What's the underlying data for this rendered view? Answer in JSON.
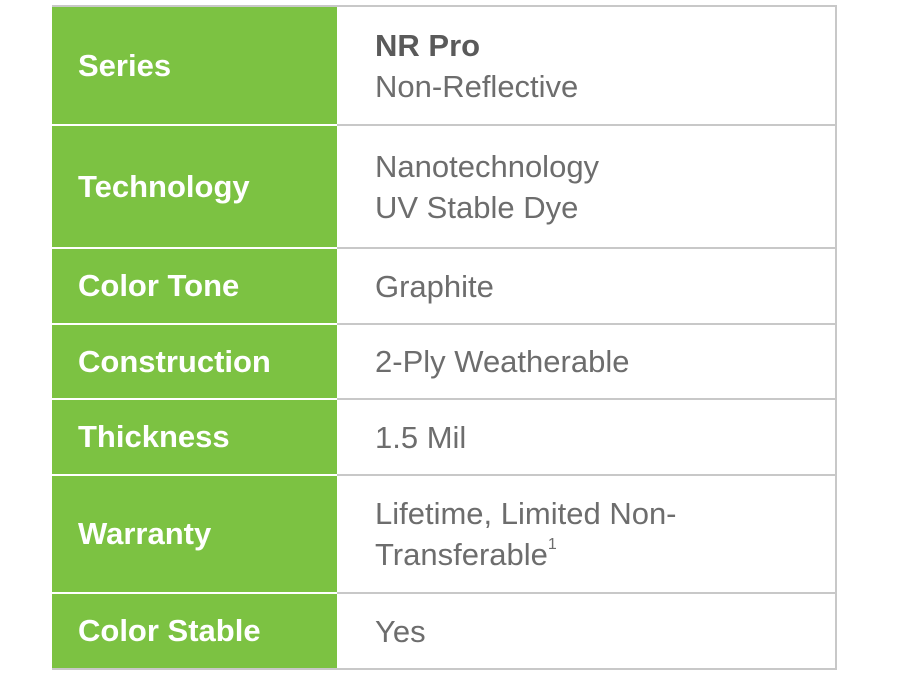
{
  "rows": [
    {
      "label": "Series",
      "lines": [
        "NR Pro",
        "Non-Reflective"
      ]
    },
    {
      "label": "Technology",
      "lines": [
        "Nanotechnology",
        "UV Stable Dye"
      ]
    },
    {
      "label": "Color Tone",
      "lines": [
        "Graphite"
      ]
    },
    {
      "label": "Construction",
      "lines": [
        "2-Ply Weatherable"
      ]
    },
    {
      "label": "Thickness",
      "lines": [
        "1.5 Mil"
      ]
    },
    {
      "label": "Warranty",
      "lines": [
        "Lifetime, Limited Non-",
        "Transferable"
      ],
      "footnote": "1"
    },
    {
      "label": "Color Stable",
      "lines": [
        "Yes"
      ]
    }
  ],
  "colors": {
    "label_bg": "#7cc242",
    "value_text": "#6d6d6d"
  }
}
